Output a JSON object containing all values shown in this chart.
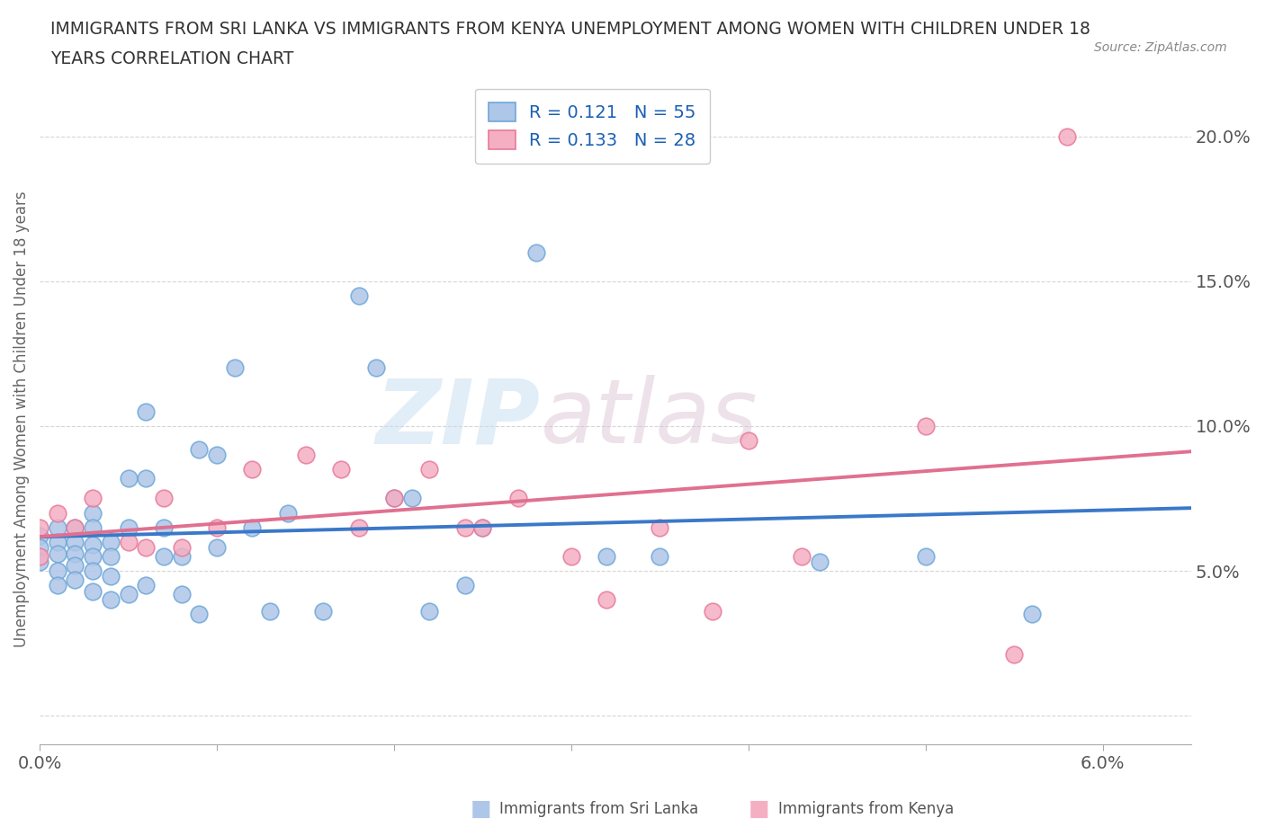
{
  "title_line1": "IMMIGRANTS FROM SRI LANKA VS IMMIGRANTS FROM KENYA UNEMPLOYMENT AMONG WOMEN WITH CHILDREN UNDER 18",
  "title_line2": "YEARS CORRELATION CHART",
  "source": "Source: ZipAtlas.com",
  "ylabel": "Unemployment Among Women with Children Under 18 years",
  "xlim": [
    0.0,
    0.065
  ],
  "ylim": [
    -0.01,
    0.215
  ],
  "xticks": [
    0.0,
    0.01,
    0.02,
    0.03,
    0.04,
    0.05,
    0.06
  ],
  "xtick_labels": [
    "0.0%",
    "",
    "",
    "",
    "",
    "",
    "6.0%"
  ],
  "yticks": [
    0.0,
    0.05,
    0.1,
    0.15,
    0.2
  ],
  "ytick_labels": [
    "",
    "5.0%",
    "10.0%",
    "15.0%",
    "20.0%"
  ],
  "sri_lanka_color": "#aec6e8",
  "kenya_color": "#f4afc3",
  "sri_lanka_edge": "#6fa8d8",
  "kenya_edge": "#e87a9a",
  "trend_sri_lanka_color": "#3a78c9",
  "trend_kenya_color": "#e07090",
  "R_sri_lanka": 0.121,
  "N_sri_lanka": 55,
  "R_kenya": 0.133,
  "N_kenya": 28,
  "watermark_zip": "ZIP",
  "watermark_atlas": "atlas",
  "sri_lanka_x": [
    0.0,
    0.0,
    0.0,
    0.001,
    0.001,
    0.001,
    0.001,
    0.001,
    0.002,
    0.002,
    0.002,
    0.002,
    0.002,
    0.003,
    0.003,
    0.003,
    0.003,
    0.003,
    0.003,
    0.004,
    0.004,
    0.004,
    0.004,
    0.005,
    0.005,
    0.005,
    0.006,
    0.006,
    0.006,
    0.007,
    0.007,
    0.008,
    0.008,
    0.009,
    0.009,
    0.01,
    0.01,
    0.011,
    0.012,
    0.013,
    0.014,
    0.016,
    0.018,
    0.019,
    0.02,
    0.021,
    0.022,
    0.024,
    0.025,
    0.028,
    0.032,
    0.035,
    0.044,
    0.05,
    0.056
  ],
  "sri_lanka_y": [
    0.062,
    0.058,
    0.053,
    0.065,
    0.06,
    0.056,
    0.05,
    0.045,
    0.065,
    0.06,
    0.056,
    0.052,
    0.047,
    0.07,
    0.065,
    0.059,
    0.055,
    0.05,
    0.043,
    0.06,
    0.055,
    0.048,
    0.04,
    0.082,
    0.065,
    0.042,
    0.105,
    0.082,
    0.045,
    0.065,
    0.055,
    0.055,
    0.042,
    0.092,
    0.035,
    0.058,
    0.09,
    0.12,
    0.065,
    0.036,
    0.07,
    0.036,
    0.145,
    0.12,
    0.075,
    0.075,
    0.036,
    0.045,
    0.065,
    0.16,
    0.055,
    0.055,
    0.053,
    0.055,
    0.035
  ],
  "kenya_x": [
    0.0,
    0.0,
    0.001,
    0.002,
    0.003,
    0.005,
    0.006,
    0.007,
    0.008,
    0.01,
    0.012,
    0.015,
    0.017,
    0.018,
    0.02,
    0.022,
    0.024,
    0.025,
    0.027,
    0.03,
    0.032,
    0.035,
    0.038,
    0.04,
    0.043,
    0.05,
    0.055,
    0.058
  ],
  "kenya_y": [
    0.065,
    0.055,
    0.07,
    0.065,
    0.075,
    0.06,
    0.058,
    0.075,
    0.058,
    0.065,
    0.085,
    0.09,
    0.085,
    0.065,
    0.075,
    0.085,
    0.065,
    0.065,
    0.075,
    0.055,
    0.04,
    0.065,
    0.036,
    0.095,
    0.055,
    0.1,
    0.021,
    0.2
  ]
}
